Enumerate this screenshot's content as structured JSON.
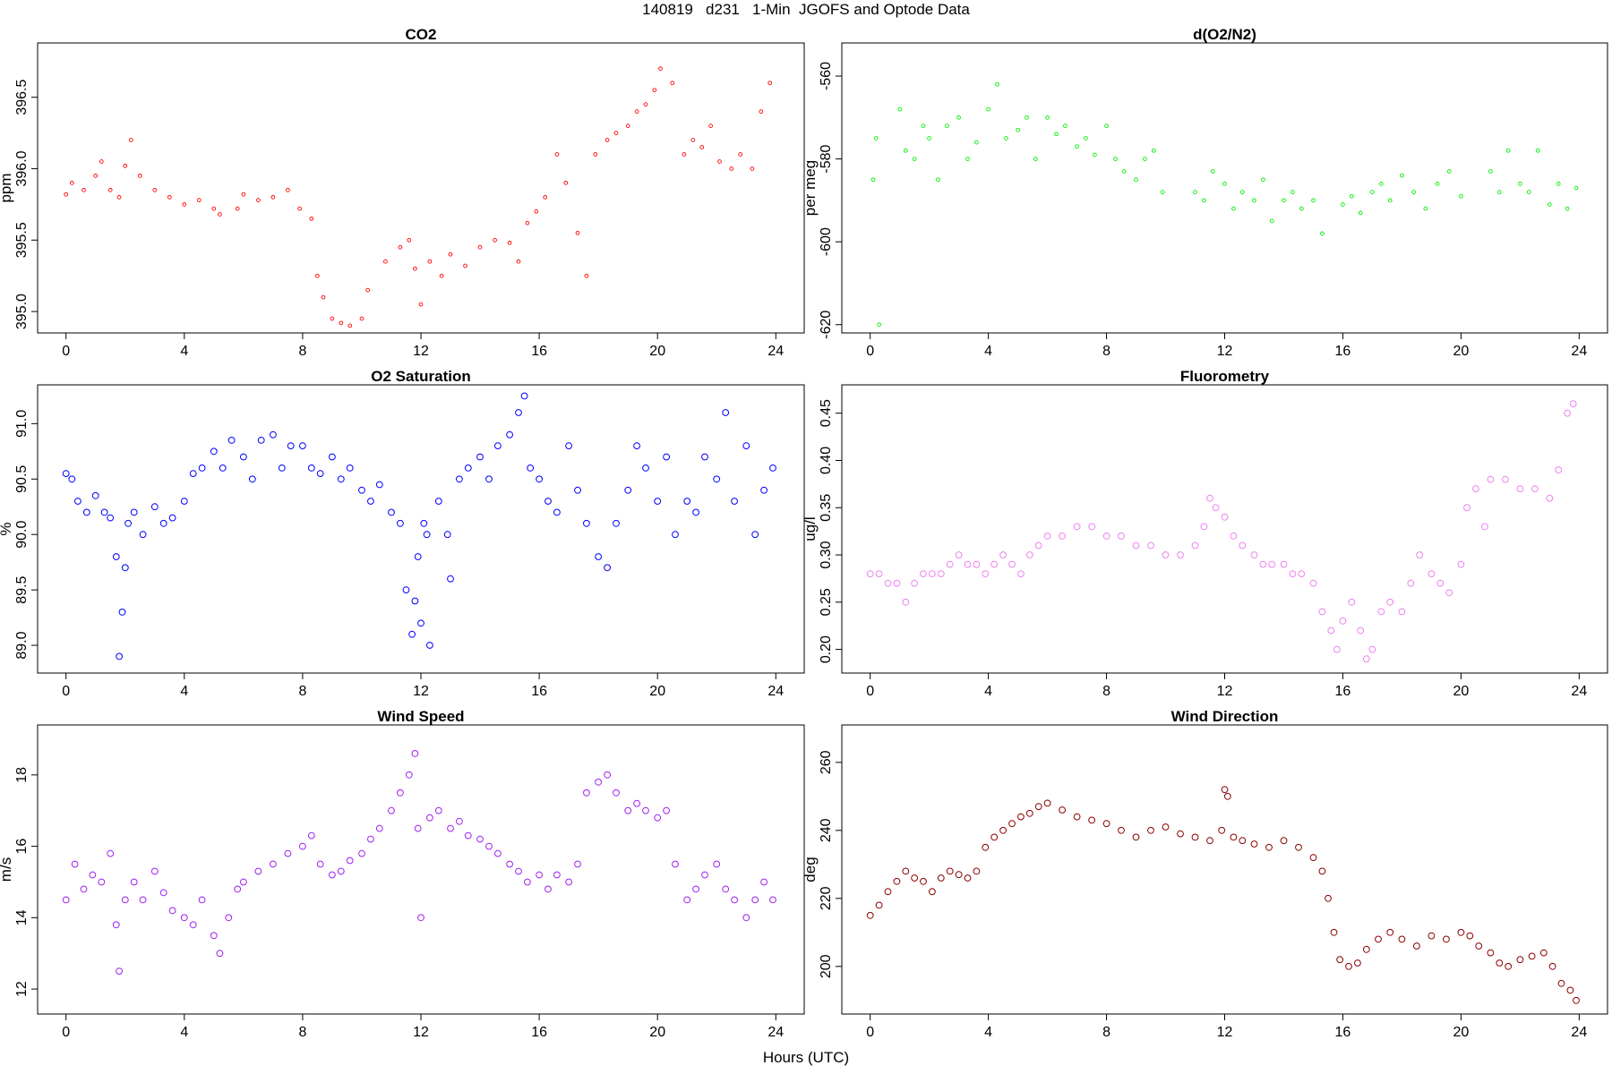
{
  "figure": {
    "title": "140819   d231   1-Min  JGOFS and Optode Data",
    "xlabel": "Hours (UTC)"
  },
  "chart_data": [
    {
      "type": "scatter",
      "title": "CO2",
      "xlabel": "",
      "ylabel": "ppm",
      "xlim": [
        0,
        24
      ],
      "ylim": [
        394.85,
        396.88
      ],
      "xticks": [
        0,
        4,
        8,
        12,
        16,
        20,
        24
      ],
      "yticks": [
        395.0,
        395.5,
        396.0,
        396.5
      ],
      "ytick_labels": [
        "395.0",
        "395.5",
        "396.0",
        "396.5"
      ],
      "color": "#ff0000",
      "marker_size": "small",
      "series": [
        {
          "x": [
            0.0,
            0.2,
            0.6,
            1.0,
            1.2,
            1.5,
            1.8,
            2.0,
            2.2,
            2.5,
            3.0,
            3.5,
            4.0,
            4.5,
            5.0,
            5.2,
            5.8,
            6.0,
            6.5,
            7.0,
            7.5,
            7.9,
            8.3,
            8.5,
            8.7,
            9.0,
            9.3,
            9.6,
            10.0,
            10.2,
            10.8,
            11.3,
            11.6,
            11.8,
            12.0,
            12.3,
            12.7,
            13.0,
            13.5,
            14.0,
            14.5,
            15.0,
            15.3,
            15.6,
            15.9,
            16.2,
            16.6,
            16.9,
            17.3,
            17.6,
            17.9,
            18.3,
            18.6,
            19.0,
            19.3,
            19.6,
            19.9,
            20.1,
            20.5,
            20.9,
            21.2,
            21.5,
            21.8,
            22.1,
            22.5,
            22.8,
            23.2,
            23.5,
            23.8
          ],
          "y": [
            395.82,
            395.9,
            395.85,
            395.95,
            396.05,
            395.85,
            395.8,
            396.02,
            396.2,
            395.95,
            395.85,
            395.8,
            395.75,
            395.78,
            395.72,
            395.68,
            395.72,
            395.82,
            395.78,
            395.8,
            395.85,
            395.72,
            395.65,
            395.25,
            395.1,
            394.95,
            394.92,
            394.9,
            394.95,
            395.15,
            395.35,
            395.45,
            395.5,
            395.3,
            395.05,
            395.35,
            395.25,
            395.4,
            395.32,
            395.45,
            395.5,
            395.48,
            395.35,
            395.62,
            395.7,
            395.8,
            396.1,
            395.9,
            395.55,
            395.25,
            396.1,
            396.2,
            396.25,
            396.3,
            396.4,
            396.45,
            396.55,
            396.7,
            396.6,
            396.1,
            396.2,
            396.15,
            396.3,
            396.05,
            396.0,
            396.1,
            396.0,
            396.4,
            396.6
          ]
        }
      ]
    },
    {
      "type": "scatter",
      "title": "d(O2/N2)",
      "xlabel": "",
      "ylabel": "per meg",
      "xlim": [
        0,
        24
      ],
      "ylim": [
        -622,
        -552
      ],
      "xticks": [
        0,
        4,
        8,
        12,
        16,
        20,
        24
      ],
      "yticks": [
        -620,
        -600,
        -580,
        -560
      ],
      "ytick_labels": [
        "-620",
        "-600",
        "-580",
        "-560"
      ],
      "color": "#00ee00",
      "marker_size": "small",
      "series": [
        {
          "x": [
            0.1,
            0.2,
            0.3,
            1.0,
            1.2,
            1.5,
            1.8,
            2.0,
            2.3,
            2.6,
            3.0,
            3.3,
            3.6,
            4.0,
            4.3,
            4.6,
            5.0,
            5.3,
            5.6,
            6.0,
            6.3,
            6.6,
            7.0,
            7.3,
            7.6,
            8.0,
            8.3,
            8.6,
            9.0,
            9.3,
            9.6,
            9.9,
            11.0,
            11.3,
            11.6,
            12.0,
            12.3,
            12.6,
            13.0,
            13.3,
            13.6,
            14.0,
            14.3,
            14.6,
            15.0,
            15.3,
            16.0,
            16.3,
            16.6,
            17.0,
            17.3,
            17.6,
            18.0,
            18.4,
            18.8,
            19.2,
            19.6,
            20.0,
            21.0,
            21.3,
            21.6,
            22.0,
            22.3,
            22.6,
            23.0,
            23.3,
            23.6,
            23.9
          ],
          "y": [
            -585,
            -575,
            -620,
            -568,
            -578,
            -580,
            -572,
            -575,
            -585,
            -572,
            -570,
            -580,
            -576,
            -568,
            -562,
            -575,
            -573,
            -570,
            -580,
            -570,
            -574,
            -572,
            -577,
            -575,
            -579,
            -572,
            -580,
            -583,
            -585,
            -580,
            -578,
            -588,
            -588,
            -590,
            -583,
            -586,
            -592,
            -588,
            -590,
            -585,
            -595,
            -590,
            -588,
            -592,
            -590,
            -598,
            -591,
            -589,
            -593,
            -588,
            -586,
            -590,
            -584,
            -588,
            -592,
            -586,
            -583,
            -589,
            -583,
            -588,
            -578,
            -586,
            -588,
            -578,
            -591,
            -586,
            -592,
            -587
          ]
        }
      ]
    },
    {
      "type": "scatter",
      "title": "O2 Saturation",
      "xlabel": "",
      "ylabel": "%",
      "xlim": [
        0,
        24
      ],
      "ylim": [
        88.75,
        91.35
      ],
      "xticks": [
        0,
        4,
        8,
        12,
        16,
        20,
        24
      ],
      "yticks": [
        89.0,
        89.5,
        90.0,
        90.5,
        91.0
      ],
      "ytick_labels": [
        "89.0",
        "89.5",
        "90.0",
        "90.5",
        "91.0"
      ],
      "color": "#0000ff",
      "marker_size": "large",
      "series": [
        {
          "x": [
            0.0,
            0.2,
            0.4,
            0.7,
            1.0,
            1.3,
            1.5,
            1.7,
            1.8,
            1.9,
            2.0,
            2.1,
            2.3,
            2.6,
            3.0,
            3.3,
            3.6,
            4.0,
            4.3,
            4.6,
            5.0,
            5.3,
            5.6,
            6.0,
            6.3,
            6.6,
            7.0,
            7.3,
            7.6,
            8.0,
            8.3,
            8.6,
            9.0,
            9.3,
            9.6,
            10.0,
            10.3,
            10.6,
            11.0,
            11.3,
            11.5,
            11.7,
            11.8,
            11.9,
            12.0,
            12.1,
            12.2,
            12.3,
            12.6,
            12.9,
            13.0,
            13.3,
            13.6,
            14.0,
            14.3,
            14.6,
            15.0,
            15.3,
            15.5,
            15.7,
            16.0,
            16.3,
            16.6,
            17.0,
            17.3,
            17.6,
            18.0,
            18.3,
            18.6,
            19.0,
            19.3,
            19.6,
            20.0,
            20.3,
            20.6,
            21.0,
            21.3,
            21.6,
            22.0,
            22.3,
            22.6,
            23.0,
            23.3,
            23.6,
            23.9
          ],
          "y": [
            90.55,
            90.5,
            90.3,
            90.2,
            90.35,
            90.2,
            90.15,
            89.8,
            88.9,
            89.3,
            89.7,
            90.1,
            90.2,
            90.0,
            90.25,
            90.1,
            90.15,
            90.3,
            90.55,
            90.6,
            90.75,
            90.6,
            90.85,
            90.7,
            90.5,
            90.85,
            90.9,
            90.6,
            90.8,
            90.8,
            90.6,
            90.55,
            90.7,
            90.5,
            90.6,
            90.4,
            90.3,
            90.45,
            90.2,
            90.1,
            89.5,
            89.1,
            89.4,
            89.8,
            89.2,
            90.1,
            90.0,
            89.0,
            90.3,
            90.0,
            89.6,
            90.5,
            90.6,
            90.7,
            90.5,
            90.8,
            90.9,
            91.1,
            91.25,
            90.6,
            90.5,
            90.3,
            90.2,
            90.8,
            90.4,
            90.1,
            89.8,
            89.7,
            90.1,
            90.4,
            90.8,
            90.6,
            90.3,
            90.7,
            90.0,
            90.3,
            90.2,
            90.7,
            90.5,
            91.1,
            90.3,
            90.8,
            90.0,
            90.4,
            90.6
          ]
        }
      ]
    },
    {
      "type": "scatter",
      "title": "Fluorometry",
      "xlabel": "",
      "ylabel": "ug/l",
      "xlim": [
        0,
        24
      ],
      "ylim": [
        0.175,
        0.48
      ],
      "xticks": [
        0,
        4,
        8,
        12,
        16,
        20,
        24
      ],
      "yticks": [
        0.2,
        0.25,
        0.3,
        0.35,
        0.4,
        0.45
      ],
      "ytick_labels": [
        "0.20",
        "0.25",
        "0.30",
        "0.35",
        "0.40",
        "0.45"
      ],
      "color": "#ee82ee",
      "marker_size": "large",
      "series": [
        {
          "x": [
            0.0,
            0.3,
            0.6,
            0.9,
            1.2,
            1.5,
            1.8,
            2.1,
            2.4,
            2.7,
            3.0,
            3.3,
            3.6,
            3.9,
            4.2,
            4.5,
            4.8,
            5.1,
            5.4,
            5.7,
            6.0,
            6.5,
            7.0,
            7.5,
            8.0,
            8.5,
            9.0,
            9.5,
            10.0,
            10.5,
            11.0,
            11.3,
            11.5,
            11.7,
            12.0,
            12.3,
            12.6,
            13.0,
            13.3,
            13.6,
            14.0,
            14.3,
            14.6,
            15.0,
            15.3,
            15.6,
            15.8,
            16.0,
            16.3,
            16.6,
            16.8,
            17.0,
            17.3,
            17.6,
            18.0,
            18.3,
            18.6,
            19.0,
            19.3,
            19.6,
            20.0,
            20.2,
            20.5,
            20.8,
            21.0,
            21.5,
            22.0,
            22.5,
            23.0,
            23.3,
            23.6,
            23.8
          ],
          "y": [
            0.28,
            0.28,
            0.27,
            0.27,
            0.25,
            0.27,
            0.28,
            0.28,
            0.28,
            0.29,
            0.3,
            0.29,
            0.29,
            0.28,
            0.29,
            0.3,
            0.29,
            0.28,
            0.3,
            0.31,
            0.32,
            0.32,
            0.33,
            0.33,
            0.32,
            0.32,
            0.31,
            0.31,
            0.3,
            0.3,
            0.31,
            0.33,
            0.36,
            0.35,
            0.34,
            0.32,
            0.31,
            0.3,
            0.29,
            0.29,
            0.29,
            0.28,
            0.28,
            0.27,
            0.24,
            0.22,
            0.2,
            0.23,
            0.25,
            0.22,
            0.19,
            0.2,
            0.24,
            0.25,
            0.24,
            0.27,
            0.3,
            0.28,
            0.27,
            0.26,
            0.29,
            0.35,
            0.37,
            0.33,
            0.38,
            0.38,
            0.37,
            0.37,
            0.36,
            0.39,
            0.45,
            0.46
          ]
        }
      ]
    },
    {
      "type": "scatter",
      "title": "Wind Speed",
      "xlabel": "",
      "ylabel": "m/s",
      "xlim": [
        0,
        24
      ],
      "ylim": [
        11.3,
        19.4
      ],
      "xticks": [
        0,
        4,
        8,
        12,
        16,
        20,
        24
      ],
      "yticks": [
        12,
        14,
        16,
        18
      ],
      "ytick_labels": [
        "12",
        "14",
        "16",
        "18"
      ],
      "color": "#a020f0",
      "marker_size": "large",
      "series": [
        {
          "x": [
            0.0,
            0.3,
            0.6,
            0.9,
            1.2,
            1.5,
            1.7,
            1.8,
            2.0,
            2.3,
            2.6,
            3.0,
            3.3,
            3.6,
            4.0,
            4.3,
            4.6,
            5.0,
            5.2,
            5.5,
            5.8,
            6.0,
            6.5,
            7.0,
            7.5,
            8.0,
            8.3,
            8.6,
            9.0,
            9.3,
            9.6,
            10.0,
            10.3,
            10.6,
            11.0,
            11.3,
            11.6,
            11.8,
            11.9,
            12.0,
            12.3,
            12.6,
            13.0,
            13.3,
            13.6,
            14.0,
            14.3,
            14.6,
            15.0,
            15.3,
            15.6,
            16.0,
            16.3,
            16.6,
            17.0,
            17.3,
            17.6,
            18.0,
            18.3,
            18.6,
            19.0,
            19.3,
            19.6,
            20.0,
            20.3,
            20.6,
            21.0,
            21.3,
            21.6,
            22.0,
            22.3,
            22.6,
            23.0,
            23.3,
            23.6,
            23.9
          ],
          "y": [
            14.5,
            15.5,
            14.8,
            15.2,
            15.0,
            15.8,
            13.8,
            12.5,
            14.5,
            15.0,
            14.5,
            15.3,
            14.7,
            14.2,
            14.0,
            13.8,
            14.5,
            13.5,
            13.0,
            14.0,
            14.8,
            15.0,
            15.3,
            15.5,
            15.8,
            16.0,
            16.3,
            15.5,
            15.2,
            15.3,
            15.6,
            15.8,
            16.2,
            16.5,
            17.0,
            17.5,
            18.0,
            18.6,
            16.5,
            14.0,
            16.8,
            17.0,
            16.5,
            16.7,
            16.3,
            16.2,
            16.0,
            15.8,
            15.5,
            15.3,
            15.0,
            15.2,
            14.8,
            15.2,
            15.0,
            15.5,
            17.5,
            17.8,
            18.0,
            17.5,
            17.0,
            17.2,
            17.0,
            16.8,
            17.0,
            15.5,
            14.5,
            14.8,
            15.2,
            15.5,
            14.8,
            14.5,
            14.0,
            14.5,
            15.0,
            14.5
          ]
        }
      ]
    },
    {
      "type": "scatter",
      "title": "Wind Direction",
      "xlabel": "",
      "ylabel": "deg",
      "xlim": [
        0,
        24
      ],
      "ylim": [
        186,
        271
      ],
      "xticks": [
        0,
        4,
        8,
        12,
        16,
        20,
        24
      ],
      "yticks": [
        200,
        220,
        240,
        260
      ],
      "ytick_labels": [
        "200",
        "220",
        "240",
        "260"
      ],
      "color": "#8b0000",
      "marker_size": "large",
      "series": [
        {
          "x": [
            0.0,
            0.3,
            0.6,
            0.9,
            1.2,
            1.5,
            1.8,
            2.1,
            2.4,
            2.7,
            3.0,
            3.3,
            3.6,
            3.9,
            4.2,
            4.5,
            4.8,
            5.1,
            5.4,
            5.7,
            6.0,
            6.5,
            7.0,
            7.5,
            8.0,
            8.5,
            9.0,
            9.5,
            10.0,
            10.5,
            11.0,
            11.5,
            11.9,
            12.0,
            12.1,
            12.3,
            12.6,
            13.0,
            13.5,
            14.0,
            14.5,
            15.0,
            15.3,
            15.5,
            15.7,
            15.9,
            16.2,
            16.5,
            16.8,
            17.2,
            17.6,
            18.0,
            18.5,
            19.0,
            19.5,
            20.0,
            20.3,
            20.6,
            21.0,
            21.3,
            21.6,
            22.0,
            22.4,
            22.8,
            23.1,
            23.4,
            23.7,
            23.9
          ],
          "y": [
            215,
            218,
            222,
            225,
            228,
            226,
            225,
            222,
            226,
            228,
            227,
            226,
            228,
            235,
            238,
            240,
            242,
            244,
            245,
            247,
            248,
            246,
            244,
            243,
            242,
            240,
            238,
            240,
            241,
            239,
            238,
            237,
            240,
            252,
            250,
            238,
            237,
            236,
            235,
            237,
            235,
            232,
            228,
            220,
            210,
            202,
            200,
            201,
            205,
            208,
            210,
            208,
            206,
            209,
            208,
            210,
            209,
            206,
            204,
            201,
            200,
            202,
            203,
            204,
            200,
            195,
            193,
            190
          ]
        }
      ]
    }
  ]
}
